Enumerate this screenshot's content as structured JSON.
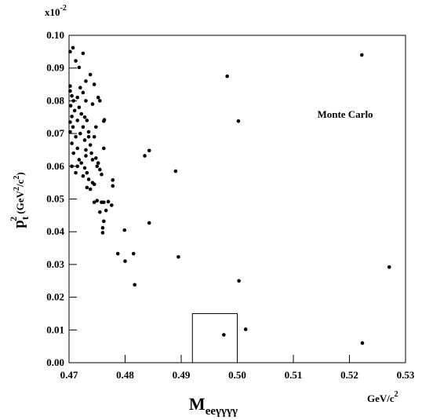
{
  "chart_data": {
    "type": "scatter",
    "annotation": "Monte Carlo",
    "y_multiplier": "x10",
    "y_multiplier_exp": "-2",
    "ylabel": {
      "main": "p",
      "sub": "t",
      "sup": "2",
      "unit_open": " (GeV",
      "unit_sup1": "2",
      "unit_mid": "/c",
      "unit_sup2": "2",
      "unit_close": ")"
    },
    "xlabel": {
      "main": "M",
      "sub": "eeγγγγ"
    },
    "xunit": {
      "main": "GeV/c",
      "sup": "2"
    },
    "xlim": [
      0.47,
      0.53
    ],
    "ylim": [
      0,
      0.1
    ],
    "xticks": [
      {
        "value": 0.47,
        "label": "0.47"
      },
      {
        "value": 0.48,
        "label": "0.48"
      },
      {
        "value": 0.49,
        "label": "0.49"
      },
      {
        "value": 0.5,
        "label": "0.50"
      },
      {
        "value": 0.51,
        "label": "0.51"
      },
      {
        "value": 0.52,
        "label": "0.52"
      },
      {
        "value": 0.53,
        "label": "0.53"
      }
    ],
    "yticks": [
      {
        "value": 0,
        "label": "0.00"
      },
      {
        "value": 0.01,
        "label": "0.01"
      },
      {
        "value": 0.02,
        "label": "0.02"
      },
      {
        "value": 0.03,
        "label": "0.03"
      },
      {
        "value": 0.04,
        "label": "0.04"
      },
      {
        "value": 0.05,
        "label": "0.05"
      },
      {
        "value": 0.06,
        "label": "0.06"
      },
      {
        "value": 0.07,
        "label": "0.07"
      },
      {
        "value": 0.08,
        "label": "0.08"
      },
      {
        "value": 0.09,
        "label": "0.09"
      },
      {
        "value": 0.1,
        "label": "0.10"
      }
    ],
    "box": {
      "x": [
        0.492,
        0.5
      ],
      "y": [
        0,
        0.015
      ]
    },
    "color": "#000000",
    "x": [
      0.5222,
      0.4982,
      0.5002,
      0.489,
      0.4835,
      0.4843,
      0.4843,
      0.4895,
      0.5003,
      0.5271,
      0.5223,
      0.5015,
      0.4976,
      0.4817,
      0.4815,
      0.4799,
      0.48,
      0.4787,
      0.4778,
      0.4778,
      0.4776,
      0.477,
      0.4762,
      0.4766,
      0.4762,
      0.476,
      0.476,
      0.4758,
      0.4762,
      0.4763,
      0.4762,
      0.4702,
      0.4707,
      0.4712,
      0.4725,
      0.4718,
      0.4702,
      0.4702,
      0.4705,
      0.4708,
      0.4703,
      0.471,
      0.4705,
      0.4702,
      0.4707,
      0.4702,
      0.4712,
      0.4705,
      0.4715,
      0.4708,
      0.472,
      0.4725,
      0.473,
      0.4715,
      0.4718,
      0.4722,
      0.4728,
      0.4732,
      0.4725,
      0.4735,
      0.472,
      0.4715,
      0.4742,
      0.4738,
      0.4745,
      0.473,
      0.4752,
      0.4755,
      0.4748,
      0.4745,
      0.4738,
      0.473,
      0.4718,
      0.4722,
      0.4728,
      0.4715,
      0.4732,
      0.4725,
      0.4735,
      0.4742,
      0.4732,
      0.4738,
      0.4745,
      0.4748,
      0.4752,
      0.4755,
      0.4758,
      0.4745,
      0.475,
      0.4755,
      0.475,
      0.4742,
      0.4705,
      0.4712,
      0.473,
      0.474,
      0.4728,
      0.4735
    ],
    "y": [
      0.094,
      0.0875,
      0.0738,
      0.0585,
      0.0632,
      0.0648,
      0.0427,
      0.0323,
      0.025,
      0.0292,
      0.006,
      0.0102,
      0.0085,
      0.0238,
      0.0333,
      0.0405,
      0.031,
      0.0333,
      0.0558,
      0.054,
      0.0481,
      0.0492,
      0.049,
      0.0465,
      0.0432,
      0.0412,
      0.0397,
      0.049,
      0.0655,
      0.0742,
      0.0738,
      0.095,
      0.0962,
      0.0922,
      0.0945,
      0.0902,
      0.0845,
      0.083,
      0.0815,
      0.08,
      0.0785,
      0.077,
      0.0752,
      0.0735,
      0.072,
      0.0705,
      0.069,
      0.067,
      0.0655,
      0.064,
      0.084,
      0.0825,
      0.08,
      0.081,
      0.078,
      0.076,
      0.075,
      0.074,
      0.072,
      0.0705,
      0.07,
      0.074,
      0.079,
      0.088,
      0.085,
      0.086,
      0.081,
      0.08,
      0.072,
      0.069,
      0.0665,
      0.065,
      0.062,
      0.061,
      0.0595,
      0.06,
      0.058,
      0.057,
      0.056,
      0.055,
      0.0535,
      0.053,
      0.0545,
      0.0625,
      0.061,
      0.059,
      0.0575,
      0.049,
      0.0495,
      0.046,
      0.06,
      0.062,
      0.06,
      0.058,
      0.0632,
      0.064,
      0.068,
      0.069
    ]
  }
}
